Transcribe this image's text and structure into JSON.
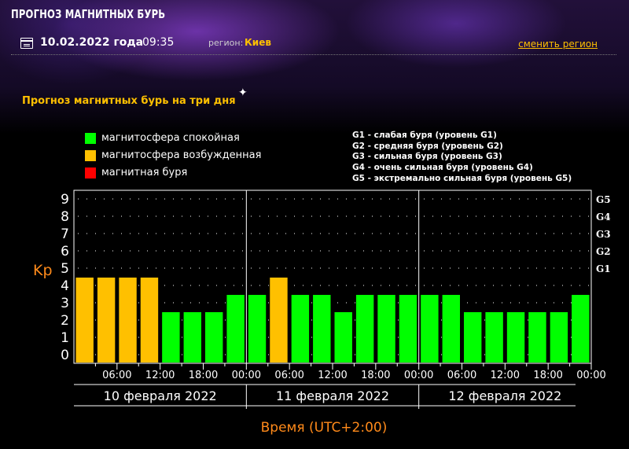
{
  "header": {
    "title": "ПРОГНОЗ МАГНИТНЫХ БУРЬ",
    "date": "10.02.2022 года",
    "time": "09:35",
    "region_label": "регион:",
    "region_value": "Киев",
    "change_region": "сменить регион"
  },
  "subtitle": "Прогноз магнитных бурь на три дня",
  "legend": [
    {
      "label": "магнитосфера спокойная",
      "color": "#00ff00"
    },
    {
      "label": "магнитосфера возбужденная",
      "color": "#ffc000"
    },
    {
      "label": "магнитная буря",
      "color": "#ff0000"
    }
  ],
  "storm_levels": [
    "G1 - слабая буря (уровень G1)",
    "G2 - средняя буря (уровень G2)",
    "G3 - сильная буря (уровень G3)",
    "G4 - очень сильная буря (уровень G4)",
    "G5 - экстремально сильная буря (уровень G5)"
  ],
  "chart_data": {
    "type": "bar",
    "ylabel": "Kp",
    "xlabel": "Время (UTC+2:00)",
    "ylim": [
      0,
      9
    ],
    "y_ticks": [
      "0",
      "1",
      "2",
      "3",
      "4",
      "5",
      "6",
      "7",
      "8",
      "9"
    ],
    "right_ticks": [
      {
        "kp": 5,
        "label": "G1"
      },
      {
        "kp": 6,
        "label": "G2"
      },
      {
        "kp": 7,
        "label": "G3"
      },
      {
        "kp": 8,
        "label": "G4"
      },
      {
        "kp": 9,
        "label": "G5"
      }
    ],
    "x_tick_labels": [
      "06:00",
      "12:00",
      "18:00",
      "00:00",
      "06:00",
      "12:00",
      "18:00",
      "00:00",
      "06:00",
      "12:00",
      "18:00",
      "00:00"
    ],
    "days": [
      "10 февраля 2022",
      "11 февраля 2022",
      "12 февраля 2022"
    ],
    "values": [
      4,
      4,
      4,
      4,
      2,
      2,
      2,
      3,
      3,
      4,
      3,
      3,
      2,
      3,
      3,
      3,
      3,
      3,
      2,
      2,
      2,
      2,
      2,
      3
    ],
    "colors": {
      "quiet": "#00ff00",
      "active": "#ffc000",
      "storm": "#ff0000"
    },
    "grid": true
  }
}
